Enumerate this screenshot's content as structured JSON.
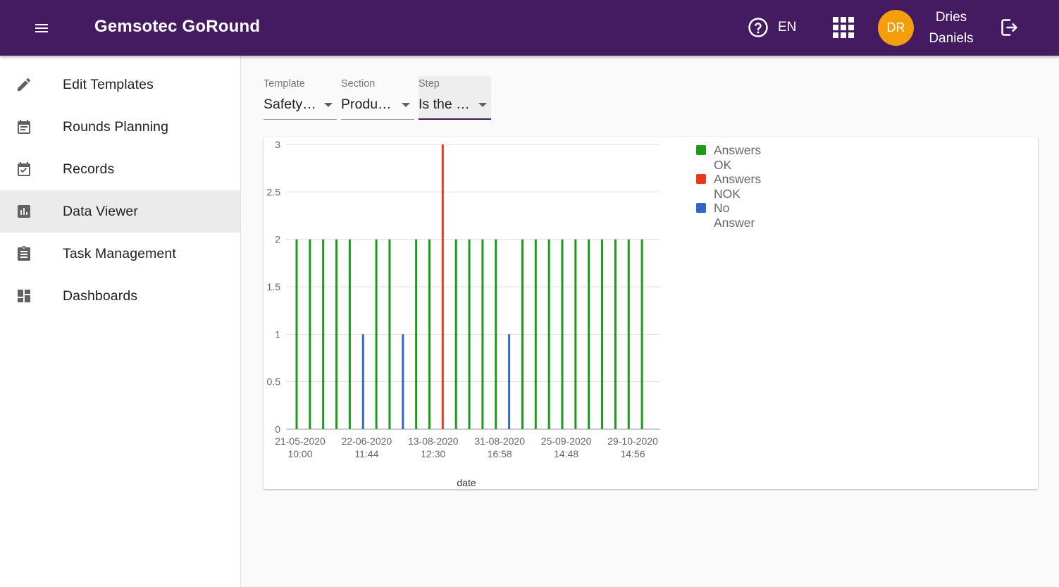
{
  "app": {
    "title": "Gemsotec GoRound",
    "language": "EN",
    "user_initials": "DR",
    "user_first_name": "Dries",
    "user_last_name": "Daniels",
    "appbar_color": "#441a60",
    "avatar_color": "#f59e0b"
  },
  "sidebar": {
    "items": [
      {
        "label": "Edit Templates",
        "icon": "pencil-icon"
      },
      {
        "label": "Rounds Planning",
        "icon": "calendar-note-icon"
      },
      {
        "label": "Records",
        "icon": "calendar-check-icon"
      },
      {
        "label": "Data Viewer",
        "icon": "bar-chart-icon",
        "active": true
      },
      {
        "label": "Task Management",
        "icon": "clipboard-icon"
      },
      {
        "label": "Dashboards",
        "icon": "dashboard-icon"
      }
    ]
  },
  "filters": {
    "template": {
      "label": "Template",
      "value": "Safety…"
    },
    "section": {
      "label": "Section",
      "value": "Produ…"
    },
    "step": {
      "label": "Step",
      "value": "Is the …"
    }
  },
  "chart_data": {
    "type": "bar",
    "xlabel": "date",
    "ylabel": "",
    "ylim": [
      0,
      3
    ],
    "y_ticks": [
      "0",
      "0.5",
      "1",
      "1.5",
      "2",
      "2.5",
      "3"
    ],
    "x_tick_labels": [
      {
        "date": "21-05-2020",
        "time": "10:00"
      },
      {
        "date": "22-06-2020",
        "time": "11:44"
      },
      {
        "date": "13-08-2020",
        "time": "12:30"
      },
      {
        "date": "31-08-2020",
        "time": "16:58"
      },
      {
        "date": "25-09-2020",
        "time": "14:48"
      },
      {
        "date": "29-10-2020",
        "time": "14:56"
      }
    ],
    "grid": true,
    "legend_position": "right",
    "series": [
      {
        "name": "Answers OK",
        "color": "#1a9b1a",
        "values": [
          2,
          2,
          2,
          2,
          2,
          0,
          2,
          2,
          0,
          2,
          2,
          0,
          2,
          2,
          2,
          2,
          0,
          2,
          2,
          2,
          2,
          2,
          2,
          2,
          2,
          2,
          2
        ]
      },
      {
        "name": "Answers NOK",
        "color": "#e8391d",
        "values": [
          0,
          0,
          0,
          0,
          0,
          0,
          0,
          0,
          0,
          0,
          0,
          3,
          0,
          0,
          0,
          0,
          0,
          0,
          0,
          0,
          0,
          0,
          0,
          0,
          0,
          0,
          0
        ]
      },
      {
        "name": "No Answer",
        "color": "#3366cc",
        "values": [
          0,
          0,
          0,
          0,
          0,
          1,
          0,
          0,
          1,
          0,
          0,
          0,
          0,
          0,
          0,
          0,
          1,
          0,
          0,
          0,
          0,
          0,
          0,
          0,
          0,
          0,
          0
        ]
      }
    ]
  }
}
